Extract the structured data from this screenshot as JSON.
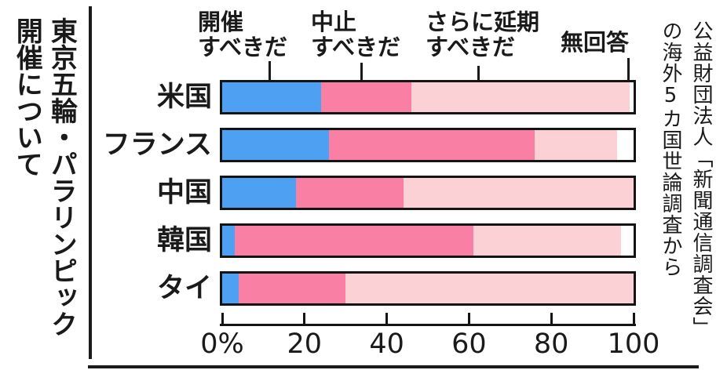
{
  "figure": {
    "title": "東京五輪・パラリンピック\n開催について",
    "source_note": "公益財団法人「新聞通信調査会」\nの海外5カ国世論調査から"
  },
  "legend": {
    "items": [
      {
        "label": "開催\nすべきだ",
        "series": "開催すべきだ"
      },
      {
        "label": "中止\nすべきだ",
        "series": "中止すべきだ"
      },
      {
        "label": "さらに延期\nすべきだ",
        "series": "さらに延期すべきだ"
      },
      {
        "label": "無回答",
        "series": "無回答"
      }
    ]
  },
  "colors": {
    "hold_blue": "#4EA0F3",
    "cancel_pink": "#F980A4",
    "postpone_lightpink": "#FBD1D6",
    "no_answer_white": "#FFFFFF",
    "ink": "#1A1A1A"
  },
  "chart_data": {
    "type": "bar",
    "variant": "horizontal-stacked",
    "title": "東京五輪・パラリンピック開催について",
    "unit": "%",
    "categories": [
      "米国",
      "フランス",
      "中国",
      "韓国",
      "タイ"
    ],
    "series": [
      {
        "name": "開催すべきだ",
        "color": "#4EA0F3",
        "values": [
          24,
          26,
          18,
          3,
          4
        ]
      },
      {
        "name": "中止すべきだ",
        "color": "#F980A4",
        "values": [
          22,
          50,
          26,
          58,
          26
        ]
      },
      {
        "name": "さらに延期すべきだ",
        "color": "#FBD1D6",
        "values": [
          53,
          20,
          56,
          36,
          70
        ]
      },
      {
        "name": "無回答",
        "color": "#FFFFFF",
        "values": [
          1,
          4,
          0,
          3,
          0
        ]
      }
    ],
    "x_ticks": [
      "0%",
      "20",
      "40",
      "60",
      "80",
      "100"
    ],
    "xlim": [
      0,
      100
    ],
    "grid": false,
    "legend_position": "top"
  }
}
